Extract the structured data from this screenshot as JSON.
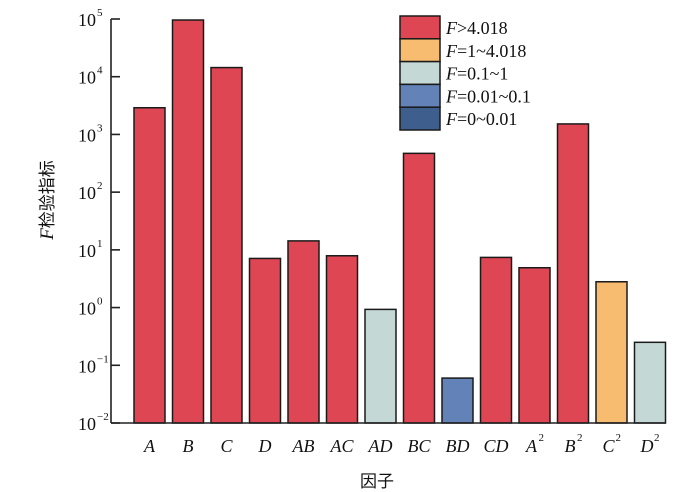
{
  "chart_data": {
    "type": "bar",
    "yscale": "log",
    "title": "",
    "xlabel": "因子",
    "ylabel_italic": "F",
    "ylabel_rest": "检验指标",
    "ylim": [
      0.01,
      100000
    ],
    "yticks": [
      {
        "base": "10",
        "exp": "5",
        "value": 100000
      },
      {
        "base": "10",
        "exp": "4",
        "value": 10000
      },
      {
        "base": "10",
        "exp": "3",
        "value": 1000
      },
      {
        "base": "10",
        "exp": "2",
        "value": 100
      },
      {
        "base": "10",
        "exp": "1",
        "value": 10
      },
      {
        "base": "10",
        "exp": "0",
        "value": 1
      },
      {
        "base": "10",
        "exp": "−1",
        "value": 0.1
      },
      {
        "base": "10",
        "exp": "−2",
        "value": 0.01
      }
    ],
    "categories": [
      {
        "label": "A",
        "sup": ""
      },
      {
        "label": "B",
        "sup": ""
      },
      {
        "label": "C",
        "sup": ""
      },
      {
        "label": "D",
        "sup": ""
      },
      {
        "label": "AB",
        "sup": ""
      },
      {
        "label": "AC",
        "sup": ""
      },
      {
        "label": "AD",
        "sup": ""
      },
      {
        "label": "BC",
        "sup": ""
      },
      {
        "label": "BD",
        "sup": ""
      },
      {
        "label": "CD",
        "sup": ""
      },
      {
        "label": "A",
        "sup": "2"
      },
      {
        "label": "B",
        "sup": "2"
      },
      {
        "label": "C",
        "sup": "2"
      },
      {
        "label": "D",
        "sup": "2"
      }
    ],
    "values": [
      2900,
      96000,
      14400,
      7.1,
      14.3,
      7.9,
      0.93,
      470,
      0.06,
      7.4,
      4.9,
      1520,
      2.8,
      0.25
    ],
    "value_class": [
      0,
      0,
      0,
      0,
      0,
      0,
      2,
      0,
      3,
      0,
      0,
      0,
      1,
      2
    ],
    "legend_position": "top-right",
    "legend": [
      {
        "italic": "F",
        "text": ">4.018",
        "color": "#DE4654"
      },
      {
        "italic": "F",
        "text": "=1~4.018",
        "color": "#F7BC70"
      },
      {
        "italic": "F",
        "text": "=0.1~1",
        "color": "#C4D8D6"
      },
      {
        "italic": "F",
        "text": "=0.01~0.1",
        "color": "#6282B8"
      },
      {
        "italic": "F",
        "text": "=0~0.01",
        "color": "#3E5E8E"
      }
    ],
    "grid": false
  }
}
